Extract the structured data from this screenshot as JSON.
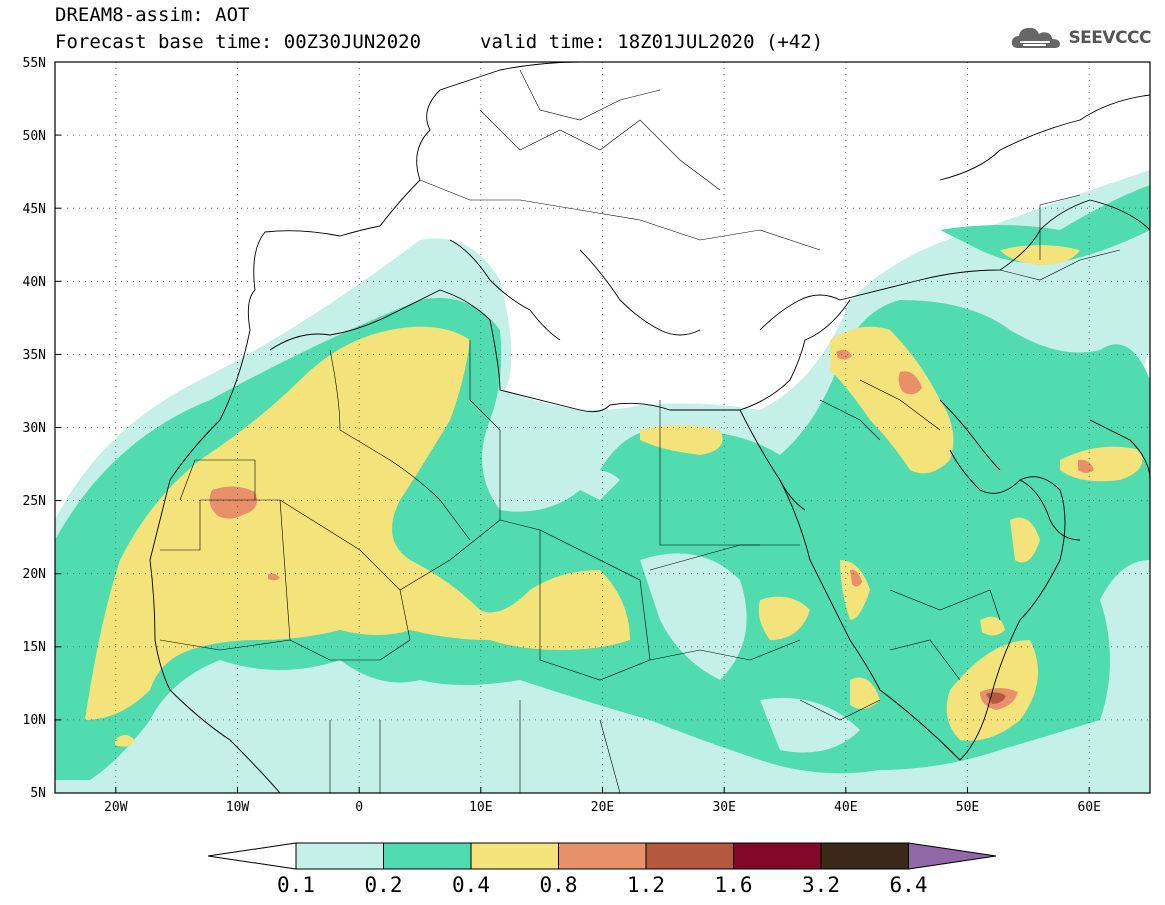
{
  "header": {
    "line1": "DREAM8-assim: AOT",
    "line2": "Forecast base time: 00Z30JUN2020",
    "line3": "valid time: 18Z01JUL2020 (+42)"
  },
  "logo": {
    "text": "SEEVCCC",
    "icon": "cloud-icon"
  },
  "map": {
    "lon_range": [
      -25,
      65
    ],
    "lat_range": [
      5,
      55
    ],
    "grid": "dotted",
    "lat_labels": [
      "55N",
      "50N",
      "45N",
      "40N",
      "35N",
      "30N",
      "25N",
      "20N",
      "15N",
      "10N",
      "5N"
    ],
    "lon_labels": [
      "20W",
      "10W",
      "0",
      "10E",
      "20E",
      "30E",
      "40E",
      "50E",
      "60E"
    ]
  },
  "colorbar": {
    "ticks": [
      "0.1",
      "0.2",
      "0.4",
      "0.8",
      "1.2",
      "1.6",
      "3.2",
      "6.4"
    ],
    "colors": [
      "#c4f0e8",
      "#50dcae",
      "#f4e27a",
      "#e8906a",
      "#b45840",
      "#820828",
      "#3c2818"
    ],
    "under_color": "#ffffff",
    "over_color": "#9068a8"
  },
  "palette": {
    "c1": "#c4f0e8",
    "c2": "#50dcae",
    "c3": "#f4e27a",
    "c4": "#e8906a",
    "c5": "#b45840"
  }
}
